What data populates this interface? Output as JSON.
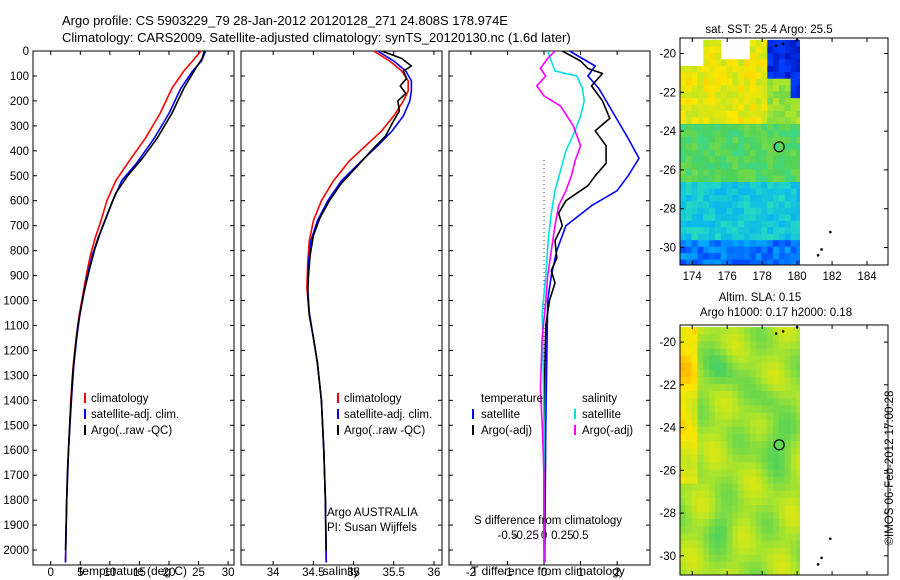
{
  "header": {
    "line1": "Argo profile: CS 5903229_79 28-Jan-2012 20120128_271 24.808S 178.974E",
    "line2": "Climatology: CARS2009. Satellite-adjusted climatology: synTS_20120130.nc (1.6d later)"
  },
  "colors": {
    "climatology": "#ff0000",
    "satellite": "#0000ff",
    "argo": "#000000",
    "sat_salinity": "#00e0e0",
    "argo_salinity_diff": "#ff00ff"
  },
  "credit": "©IMOS 06-Feb-2012 17:00:28",
  "chart_data": [
    {
      "type": "line",
      "xlabel": "temperature (deg C)",
      "xlim": [
        -3,
        31
      ],
      "xticks": [
        0,
        5,
        10,
        15,
        20,
        25,
        30
      ],
      "ylim": [
        2060,
        0
      ],
      "yticks": [
        0,
        100,
        200,
        300,
        400,
        500,
        600,
        700,
        800,
        900,
        1000,
        1100,
        1200,
        1300,
        1400,
        1500,
        1600,
        1700,
        1800,
        1900,
        2000
      ],
      "legend": [
        "climatology",
        "satellite-adj. clim.",
        "Argo(..raw -QC)"
      ],
      "series": [
        {
          "name": "climatology",
          "color": "#ff0000",
          "points": [
            [
              25.4,
              0
            ],
            [
              24,
              40
            ],
            [
              22.5,
              80
            ],
            [
              20.5,
              150
            ],
            [
              18.5,
              250
            ],
            [
              16,
              350
            ],
            [
              13,
              450
            ],
            [
              11,
              520
            ],
            [
              9.5,
              600
            ],
            [
              8.5,
              680
            ],
            [
              7.5,
              750
            ],
            [
              6.7,
              820
            ],
            [
              6,
              900
            ],
            [
              5.4,
              980
            ],
            [
              4.8,
              1060
            ],
            [
              4.3,
              1150
            ],
            [
              3.8,
              1260
            ],
            [
              3.4,
              1400
            ],
            [
              3,
              1600
            ],
            [
              2.7,
              1800
            ],
            [
              2.5,
              2050
            ]
          ]
        },
        {
          "name": "satellite-adj. clim.",
          "color": "#0000ff",
          "points": [
            [
              26.2,
              0
            ],
            [
              25.5,
              40
            ],
            [
              24,
              80
            ],
            [
              22,
              150
            ],
            [
              20,
              250
            ],
            [
              17.5,
              350
            ],
            [
              14.5,
              450
            ],
            [
              12,
              520
            ],
            [
              10.5,
              600
            ],
            [
              9.2,
              680
            ],
            [
              8,
              750
            ],
            [
              7,
              820
            ],
            [
              6.2,
              900
            ],
            [
              5.5,
              980
            ],
            [
              4.9,
              1060
            ],
            [
              4.4,
              1150
            ],
            [
              3.9,
              1260
            ],
            [
              3.5,
              1400
            ],
            [
              3,
              1600
            ],
            [
              2.7,
              1800
            ],
            [
              2.5,
              2050
            ]
          ]
        },
        {
          "name": "Argo(..raw -QC)",
          "color": "#000000",
          "points": [
            [
              26,
              0
            ],
            [
              25.6,
              30
            ],
            [
              24.5,
              70
            ],
            [
              22.5,
              150
            ],
            [
              20.5,
              250
            ],
            [
              18,
              350
            ],
            [
              15.5,
              430
            ],
            [
              13,
              500
            ],
            [
              11,
              570
            ],
            [
              9.8,
              640
            ],
            [
              8.5,
              720
            ],
            [
              7.5,
              790
            ],
            [
              6.6,
              870
            ],
            [
              5.8,
              950
            ],
            [
              5.2,
              1020
            ],
            [
              4.6,
              1100
            ],
            [
              4.1,
              1200
            ],
            [
              3.7,
              1300
            ],
            [
              3.2,
              1500
            ],
            [
              2.8,
              1700
            ],
            [
              2.6,
              1900
            ],
            [
              2.5,
              2000
            ]
          ]
        }
      ]
    },
    {
      "type": "line",
      "xlabel": "salinity",
      "xlim": [
        33.6,
        36.1
      ],
      "xticks": [
        34,
        34.5,
        35,
        35.5,
        36
      ],
      "xticklabels": [
        "34",
        "34.5",
        "35",
        "35.5",
        "36"
      ],
      "ylim": [
        2060,
        0
      ],
      "legend": [
        "climatology",
        "satellite-adj. clim.",
        "Argo(..raw -QC)"
      ],
      "annotation": [
        "Argo AUSTRALIA",
        "PI: Susan Wijffels"
      ],
      "series": [
        {
          "name": "climatology",
          "color": "#ff0000",
          "points": [
            [
              35.25,
              0
            ],
            [
              35.45,
              40
            ],
            [
              35.6,
              80
            ],
            [
              35.68,
              120
            ],
            [
              35.68,
              160
            ],
            [
              35.62,
              200
            ],
            [
              35.5,
              260
            ],
            [
              35.35,
              320
            ],
            [
              35.15,
              380
            ],
            [
              34.95,
              440
            ],
            [
              34.75,
              520
            ],
            [
              34.6,
              600
            ],
            [
              34.5,
              680
            ],
            [
              34.45,
              760
            ],
            [
              34.43,
              850
            ],
            [
              34.42,
              950
            ],
            [
              34.45,
              1050
            ],
            [
              34.5,
              1150
            ],
            [
              34.55,
              1250
            ],
            [
              34.6,
              1400
            ],
            [
              34.63,
              1600
            ],
            [
              34.65,
              1800
            ],
            [
              34.66,
              2050
            ]
          ]
        },
        {
          "name": "satellite-adj. clim.",
          "color": "#0000ff",
          "points": [
            [
              35.3,
              0
            ],
            [
              35.5,
              40
            ],
            [
              35.65,
              80
            ],
            [
              35.72,
              120
            ],
            [
              35.72,
              160
            ],
            [
              35.7,
              200
            ],
            [
              35.62,
              260
            ],
            [
              35.48,
              320
            ],
            [
              35.3,
              380
            ],
            [
              35.1,
              440
            ],
            [
              34.85,
              520
            ],
            [
              34.68,
              600
            ],
            [
              34.55,
              680
            ],
            [
              34.47,
              760
            ],
            [
              34.44,
              850
            ],
            [
              34.43,
              950
            ],
            [
              34.45,
              1050
            ],
            [
              34.5,
              1150
            ],
            [
              34.55,
              1250
            ],
            [
              34.6,
              1400
            ],
            [
              34.63,
              1600
            ],
            [
              34.65,
              1800
            ],
            [
              34.66,
              2050
            ]
          ]
        },
        {
          "name": "Argo(..raw -QC)",
          "color": "#000000",
          "points": [
            [
              35.35,
              0
            ],
            [
              35.6,
              30
            ],
            [
              35.72,
              60
            ],
            [
              35.62,
              80
            ],
            [
              35.66,
              110
            ],
            [
              35.58,
              140
            ],
            [
              35.65,
              170
            ],
            [
              35.55,
              200
            ],
            [
              35.57,
              240
            ],
            [
              35.48,
              290
            ],
            [
              35.4,
              340
            ],
            [
              35.22,
              400
            ],
            [
              35.05,
              460
            ],
            [
              34.85,
              530
            ],
            [
              34.7,
              600
            ],
            [
              34.58,
              670
            ],
            [
              34.5,
              740
            ],
            [
              34.46,
              820
            ],
            [
              34.44,
              900
            ],
            [
              34.43,
              980
            ],
            [
              34.45,
              1060
            ],
            [
              34.5,
              1150
            ],
            [
              34.55,
              1250
            ],
            [
              34.6,
              1400
            ],
            [
              34.63,
              1600
            ],
            [
              34.65,
              1800
            ],
            [
              34.66,
              2000
            ]
          ]
        }
      ]
    },
    {
      "type": "line",
      "xlabel": "T difference from climatology",
      "xlabel_top": "S difference from climatology",
      "xlim": [
        -2.6,
        2.9
      ],
      "xticks": [
        -2,
        -1,
        0,
        1,
        2
      ],
      "top_ticks": [
        -1,
        -0.5,
        0,
        0.5,
        1
      ],
      "top_ticklabels": [
        "-0.5",
        "-0.25",
        "0",
        "0.25",
        "0.5"
      ],
      "ylim": [
        2060,
        0
      ],
      "legend_temperature_title": "temperature",
      "legend_salinity_title": "salinity",
      "legend": [
        "satellite",
        "Argo(-adj)",
        "satellite",
        "Argo(-adj)"
      ],
      "series": [
        {
          "name": "satellite",
          "color": "#0000ff",
          "points": [
            [
              0.7,
              0
            ],
            [
              1.4,
              60
            ],
            [
              1.2,
              100
            ],
            [
              1.5,
              150
            ],
            [
              1.9,
              250
            ],
            [
              2.3,
              350
            ],
            [
              2.6,
              430
            ],
            [
              2.3,
              500
            ],
            [
              2,
              560
            ],
            [
              1.3,
              620
            ],
            [
              0.6,
              700
            ],
            [
              0.35,
              800
            ],
            [
              0.2,
              900
            ],
            [
              0.1,
              1000
            ],
            [
              0.08,
              1200
            ],
            [
              0.05,
              1500
            ],
            [
              0.02,
              2050
            ]
          ]
        },
        {
          "name": "Argo(-adj)",
          "color": "#000000",
          "points": [
            [
              0.5,
              0
            ],
            [
              1,
              40
            ],
            [
              1.2,
              70
            ],
            [
              1.6,
              90
            ],
            [
              1.3,
              140
            ],
            [
              1.6,
              200
            ],
            [
              1.8,
              270
            ],
            [
              1.4,
              320
            ],
            [
              1.7,
              380
            ],
            [
              1.7,
              450
            ],
            [
              1.4,
              500
            ],
            [
              1.2,
              540
            ],
            [
              0.6,
              600
            ],
            [
              0.4,
              650
            ],
            [
              0.5,
              700
            ],
            [
              0.3,
              760
            ],
            [
              0.35,
              830
            ],
            [
              0.2,
              880
            ],
            [
              0.3,
              930
            ],
            [
              0.15,
              1000
            ],
            [
              0.05,
              1100
            ],
            [
              0.02,
              1300
            ],
            [
              0,
              1500
            ],
            [
              0,
              2000
            ]
          ]
        },
        {
          "name": "satellite",
          "color": "#00e0e0",
          "points": [
            [
              0.1,
              0
            ],
            [
              0.2,
              40
            ],
            [
              0.3,
              80
            ],
            [
              0.9,
              100
            ],
            [
              1.05,
              150
            ],
            [
              1.1,
              200
            ],
            [
              1,
              260
            ],
            [
              0.85,
              320
            ],
            [
              0.6,
              400
            ],
            [
              0.45,
              480
            ],
            [
              0.3,
              560
            ],
            [
              0.2,
              650
            ],
            [
              0.12,
              750
            ],
            [
              0.05,
              900
            ],
            [
              -0.05,
              1050
            ],
            [
              -0.03,
              1200
            ],
            [
              0,
              1500
            ],
            [
              0,
              2050
            ]
          ]
        },
        {
          "name": "Argo(-adj)",
          "color": "#ff00ff",
          "points": [
            [
              0.3,
              0
            ],
            [
              0.1,
              30
            ],
            [
              -0.1,
              70
            ],
            [
              0.05,
              100
            ],
            [
              -0.2,
              140
            ],
            [
              0,
              180
            ],
            [
              0.45,
              220
            ],
            [
              0.8,
              300
            ],
            [
              1,
              380
            ],
            [
              0.85,
              440
            ],
            [
              0.75,
              500
            ],
            [
              0.6,
              560
            ],
            [
              0.4,
              620
            ],
            [
              0.3,
              700
            ],
            [
              0.2,
              800
            ],
            [
              0.1,
              900
            ],
            [
              0.05,
              1000
            ],
            [
              -0.05,
              1150
            ],
            [
              -0.1,
              1350
            ],
            [
              -0.05,
              1500
            ],
            [
              0,
              1700
            ],
            [
              0,
              2050
            ]
          ]
        }
      ]
    },
    {
      "type": "heatmap",
      "title": "sat. SST: 25.4 Argo: 25.5",
      "xlim": [
        173.3,
        185.2
      ],
      "ylim": [
        -30.9,
        -19.2
      ],
      "xticks": [
        174,
        176,
        178,
        180,
        182,
        184
      ],
      "yticks": [
        -20,
        -22,
        -24,
        -26,
        -28,
        -30
      ],
      "argo_position": [
        178.974,
        -24.808
      ]
    },
    {
      "type": "heatmap",
      "title_lines": [
        "Altim. SLA: 0.15",
        "Argo h1000: 0.17 h2000: 0.18"
      ],
      "xlim": [
        173.3,
        185.2
      ],
      "ylim": [
        -30.9,
        -19.2
      ],
      "xticks": [
        174,
        176,
        178,
        180,
        182,
        184
      ],
      "yticks": [
        -20,
        -22,
        -24,
        -26,
        -28,
        -30
      ],
      "argo_position": [
        178.974,
        -24.808
      ]
    }
  ]
}
